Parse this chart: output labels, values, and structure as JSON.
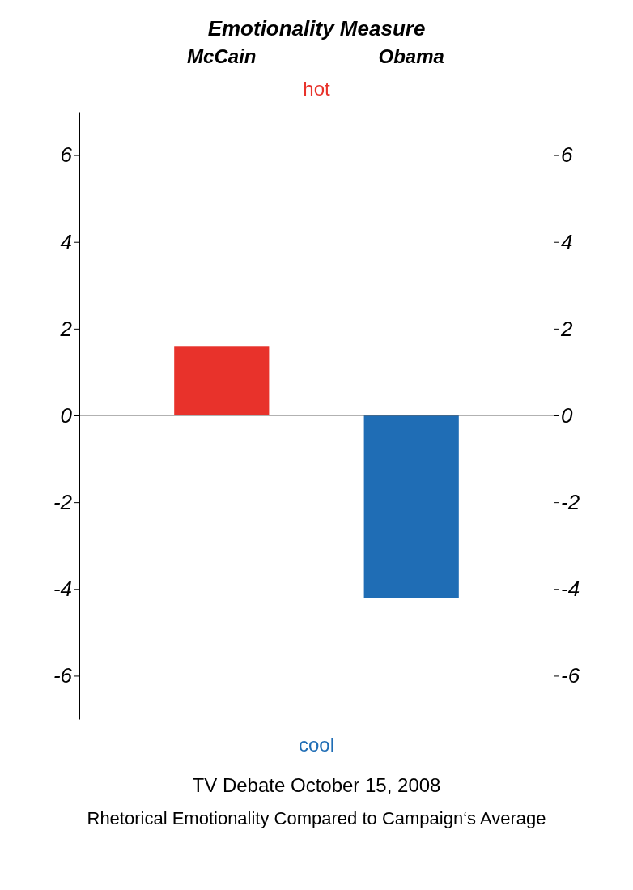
{
  "chart_data": {
    "type": "bar",
    "title": "Emotionality Measure",
    "categories": [
      "McCain",
      "Obama"
    ],
    "values": [
      1.6,
      -4.2
    ],
    "colors": [
      "#e8322b",
      "#1f6db5"
    ],
    "ylim": [
      -7,
      7
    ],
    "yticks": [
      -6,
      -4,
      -2,
      0,
      2,
      4,
      6
    ],
    "y2lim": [
      -7,
      7
    ],
    "y2ticks": [
      -6,
      -4,
      -2,
      0,
      2,
      4,
      6
    ],
    "annotations": [
      "hot",
      "cool",
      "TV Debate October 15, 2008",
      "Rhetorical Emotionality Compared to Campaign‘s Average"
    ]
  }
}
